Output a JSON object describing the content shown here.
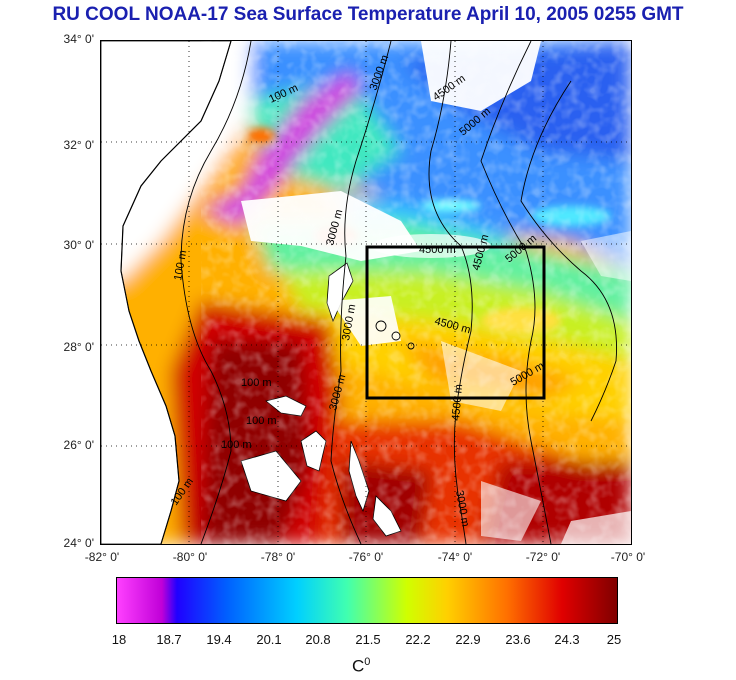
{
  "title": "RU COOL  NOAA-17 Sea Surface Temperature April 10, 2005 0255 GMT",
  "map": {
    "lat_range": [
      24,
      34
    ],
    "lon_range": [
      -82,
      -70
    ],
    "lat_labels": [
      "34° 0'",
      "32° 0'",
      "30° 0'",
      "28° 0'",
      "26° 0'",
      "24° 0'"
    ],
    "lon_labels": [
      "-82° 0'",
      "-80° 0'",
      "-78° 0'",
      "-76° 0'",
      "-74° 0'",
      "-72° 0'",
      "-70° 0'"
    ],
    "highlight_box": {
      "lon_min": -76,
      "lon_max": -72,
      "lat_min": 27,
      "lat_max": 30
    },
    "contour_labels": [
      "100 m",
      "100 m",
      "100 m",
      "100 m",
      "100 m",
      "100 m",
      "3000 m",
      "3000 m",
      "3000 m",
      "3000 m",
      "3000 m",
      "4500 m",
      "4500 m",
      "4500 m",
      "4500 m",
      "4500 m",
      "5000 m",
      "5000 m",
      "5000 m"
    ],
    "land_color": "#ffffff",
    "cloud_color": "#ffffff"
  },
  "colorbar": {
    "ticks": [
      "18",
      "18.7",
      "19.4",
      "20.1",
      "20.8",
      "21.5",
      "22.2",
      "22.9",
      "23.6",
      "24.3",
      "25"
    ],
    "range": [
      18,
      25
    ],
    "colors": [
      "#ff44ff",
      "#c000d8",
      "#2200ff",
      "#0060ff",
      "#00c8ff",
      "#40ffc0",
      "#c8ff00",
      "#ffd800",
      "#ff7000",
      "#e00000",
      "#800000"
    ]
  },
  "unit_label": "C",
  "unit_sup": "0"
}
